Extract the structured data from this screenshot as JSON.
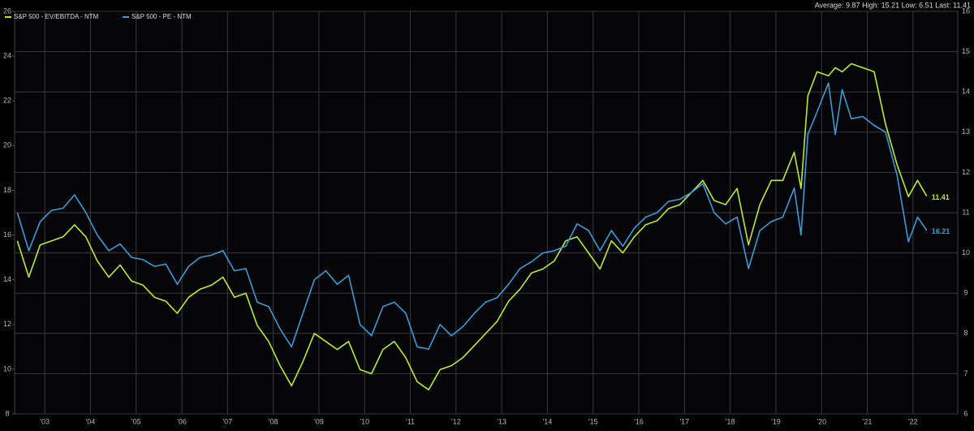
{
  "chart_data": {
    "type": "line",
    "annotation": "Average: 9.87 High: 15.21 Low: 6.51 Last: 11.41",
    "x": [
      2002.9,
      2003.15,
      2003.4,
      2003.65,
      2003.9,
      2004.15,
      2004.4,
      2004.65,
      2004.9,
      2005.15,
      2005.4,
      2005.65,
      2005.9,
      2006.15,
      2006.4,
      2006.65,
      2006.9,
      2007.15,
      2007.4,
      2007.65,
      2007.9,
      2008.15,
      2008.4,
      2008.65,
      2008.9,
      2009.15,
      2009.4,
      2009.65,
      2009.9,
      2010.15,
      2010.4,
      2010.65,
      2010.9,
      2011.15,
      2011.4,
      2011.65,
      2011.9,
      2012.15,
      2012.4,
      2012.65,
      2012.9,
      2013.15,
      2013.4,
      2013.65,
      2013.9,
      2014.15,
      2014.4,
      2014.65,
      2014.9,
      2015.15,
      2015.4,
      2015.65,
      2015.9,
      2016.15,
      2016.4,
      2016.65,
      2016.9,
      2017.15,
      2017.4,
      2017.65,
      2017.9,
      2018.15,
      2018.4,
      2018.65,
      2018.9,
      2019.15,
      2019.4,
      2019.65,
      2019.9,
      2020.05,
      2020.2,
      2020.4,
      2020.65,
      2020.8,
      2020.95,
      2021.15,
      2021.4,
      2021.65,
      2021.9,
      2022.15,
      2022.4,
      2022.6,
      2022.8
    ],
    "series": [
      {
        "name": "S&P 500 - EV/EBITDA - NTM",
        "color": "#b8ec2e",
        "axis": "y2",
        "values": [
          10.3,
          9.4,
          10.2,
          10.3,
          10.4,
          10.7,
          10.4,
          9.8,
          9.4,
          9.7,
          9.3,
          9.2,
          8.9,
          8.8,
          8.5,
          8.9,
          9.1,
          9.2,
          9.4,
          8.9,
          9.0,
          8.2,
          7.8,
          7.2,
          6.7,
          7.3,
          8.0,
          7.8,
          7.6,
          7.8,
          7.1,
          7.0,
          7.6,
          7.8,
          7.4,
          6.8,
          6.6,
          7.1,
          7.2,
          7.4,
          7.7,
          8.0,
          8.3,
          8.8,
          9.1,
          9.5,
          9.6,
          9.8,
          10.3,
          10.4,
          10.0,
          9.6,
          10.3,
          10.0,
          10.4,
          10.7,
          10.8,
          11.1,
          11.2,
          11.5,
          11.8,
          11.3,
          11.2,
          11.6,
          10.2,
          11.2,
          11.8,
          11.8,
          12.5,
          11.6,
          13.9,
          14.5,
          14.4,
          14.6,
          14.5,
          14.7,
          14.6,
          14.5,
          13.2,
          12.2,
          11.4,
          11.8,
          11.41
        ]
      },
      {
        "name": "S&P 500 - PE - NTM",
        "color": "#3a9bd8",
        "values": [
          17.0,
          15.3,
          16.6,
          17.1,
          17.2,
          17.8,
          17.0,
          16.0,
          15.3,
          15.6,
          15.0,
          14.9,
          14.6,
          14.7,
          13.8,
          14.6,
          15.0,
          15.1,
          15.3,
          14.4,
          14.5,
          13.0,
          12.8,
          11.8,
          11.0,
          12.5,
          14.0,
          14.4,
          13.8,
          14.2,
          12.0,
          11.5,
          12.8,
          13.0,
          12.5,
          11.0,
          10.9,
          12.0,
          11.5,
          11.9,
          12.5,
          13.0,
          13.2,
          13.8,
          14.5,
          14.8,
          15.2,
          15.3,
          15.5,
          16.5,
          16.2,
          15.3,
          16.2,
          15.5,
          16.3,
          16.8,
          17.0,
          17.5,
          17.6,
          17.9,
          18.3,
          17.0,
          16.5,
          16.8,
          14.5,
          16.2,
          16.6,
          16.8,
          18.1,
          16.0,
          20.5,
          21.5,
          22.8,
          20.5,
          22.5,
          21.2,
          21.3,
          20.9,
          20.6,
          18.7,
          15.7,
          16.8,
          16.21
        ]
      }
    ],
    "xlim": [
      2002.84,
      2023.48
    ],
    "xticks": [
      {
        "value": 2003.5,
        "label": "'03"
      },
      {
        "value": 2004.5,
        "label": "'04"
      },
      {
        "value": 2005.5,
        "label": "'05"
      },
      {
        "value": 2006.5,
        "label": "'06"
      },
      {
        "value": 2007.5,
        "label": "'07"
      },
      {
        "value": 2008.5,
        "label": "'08"
      },
      {
        "value": 2009.5,
        "label": "'09"
      },
      {
        "value": 2010.5,
        "label": "'10"
      },
      {
        "value": 2011.5,
        "label": "'11"
      },
      {
        "value": 2012.5,
        "label": "'12"
      },
      {
        "value": 2013.5,
        "label": "'13"
      },
      {
        "value": 2014.5,
        "label": "'14"
      },
      {
        "value": 2015.5,
        "label": "'15"
      },
      {
        "value": 2016.5,
        "label": "'16"
      },
      {
        "value": 2017.5,
        "label": "'17"
      },
      {
        "value": 2018.5,
        "label": "'18"
      },
      {
        "value": 2019.5,
        "label": "'19"
      },
      {
        "value": 2020.5,
        "label": "'20"
      },
      {
        "value": 2021.5,
        "label": "'21"
      },
      {
        "value": 2022.5,
        "label": "'22"
      }
    ],
    "ylim": [
      8,
      26
    ],
    "yticks": [
      8,
      10,
      12,
      14,
      16,
      18,
      20,
      22,
      24,
      26
    ],
    "y2lim": [
      6,
      16
    ],
    "y2ticks": [
      6,
      7,
      8,
      9,
      10,
      11,
      12,
      13,
      14,
      15,
      16
    ],
    "grid": true
  }
}
